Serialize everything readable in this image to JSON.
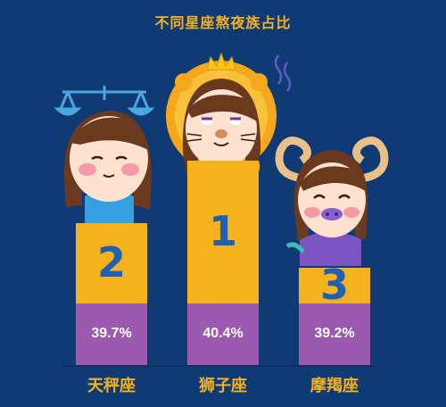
{
  "chart_data": {
    "type": "bar",
    "title": "不同星座熬夜族占比",
    "categories": [
      "天秤座",
      "狮子座",
      "摩羯座"
    ],
    "values": [
      39.7,
      40.4,
      39.2
    ],
    "value_labels": [
      "39.7%",
      "40.4%",
      "39.2%"
    ],
    "ranks": [
      "2",
      "1",
      "3"
    ],
    "colors": {
      "background": "#0f3a73",
      "rank_block": "#f5b21f",
      "value_block": "#9b59b0",
      "text": "#f5b21f"
    },
    "icons": [
      "libra-scale-icon",
      "lion-mane-crown-icon",
      "ram-horns-icon"
    ]
  }
}
